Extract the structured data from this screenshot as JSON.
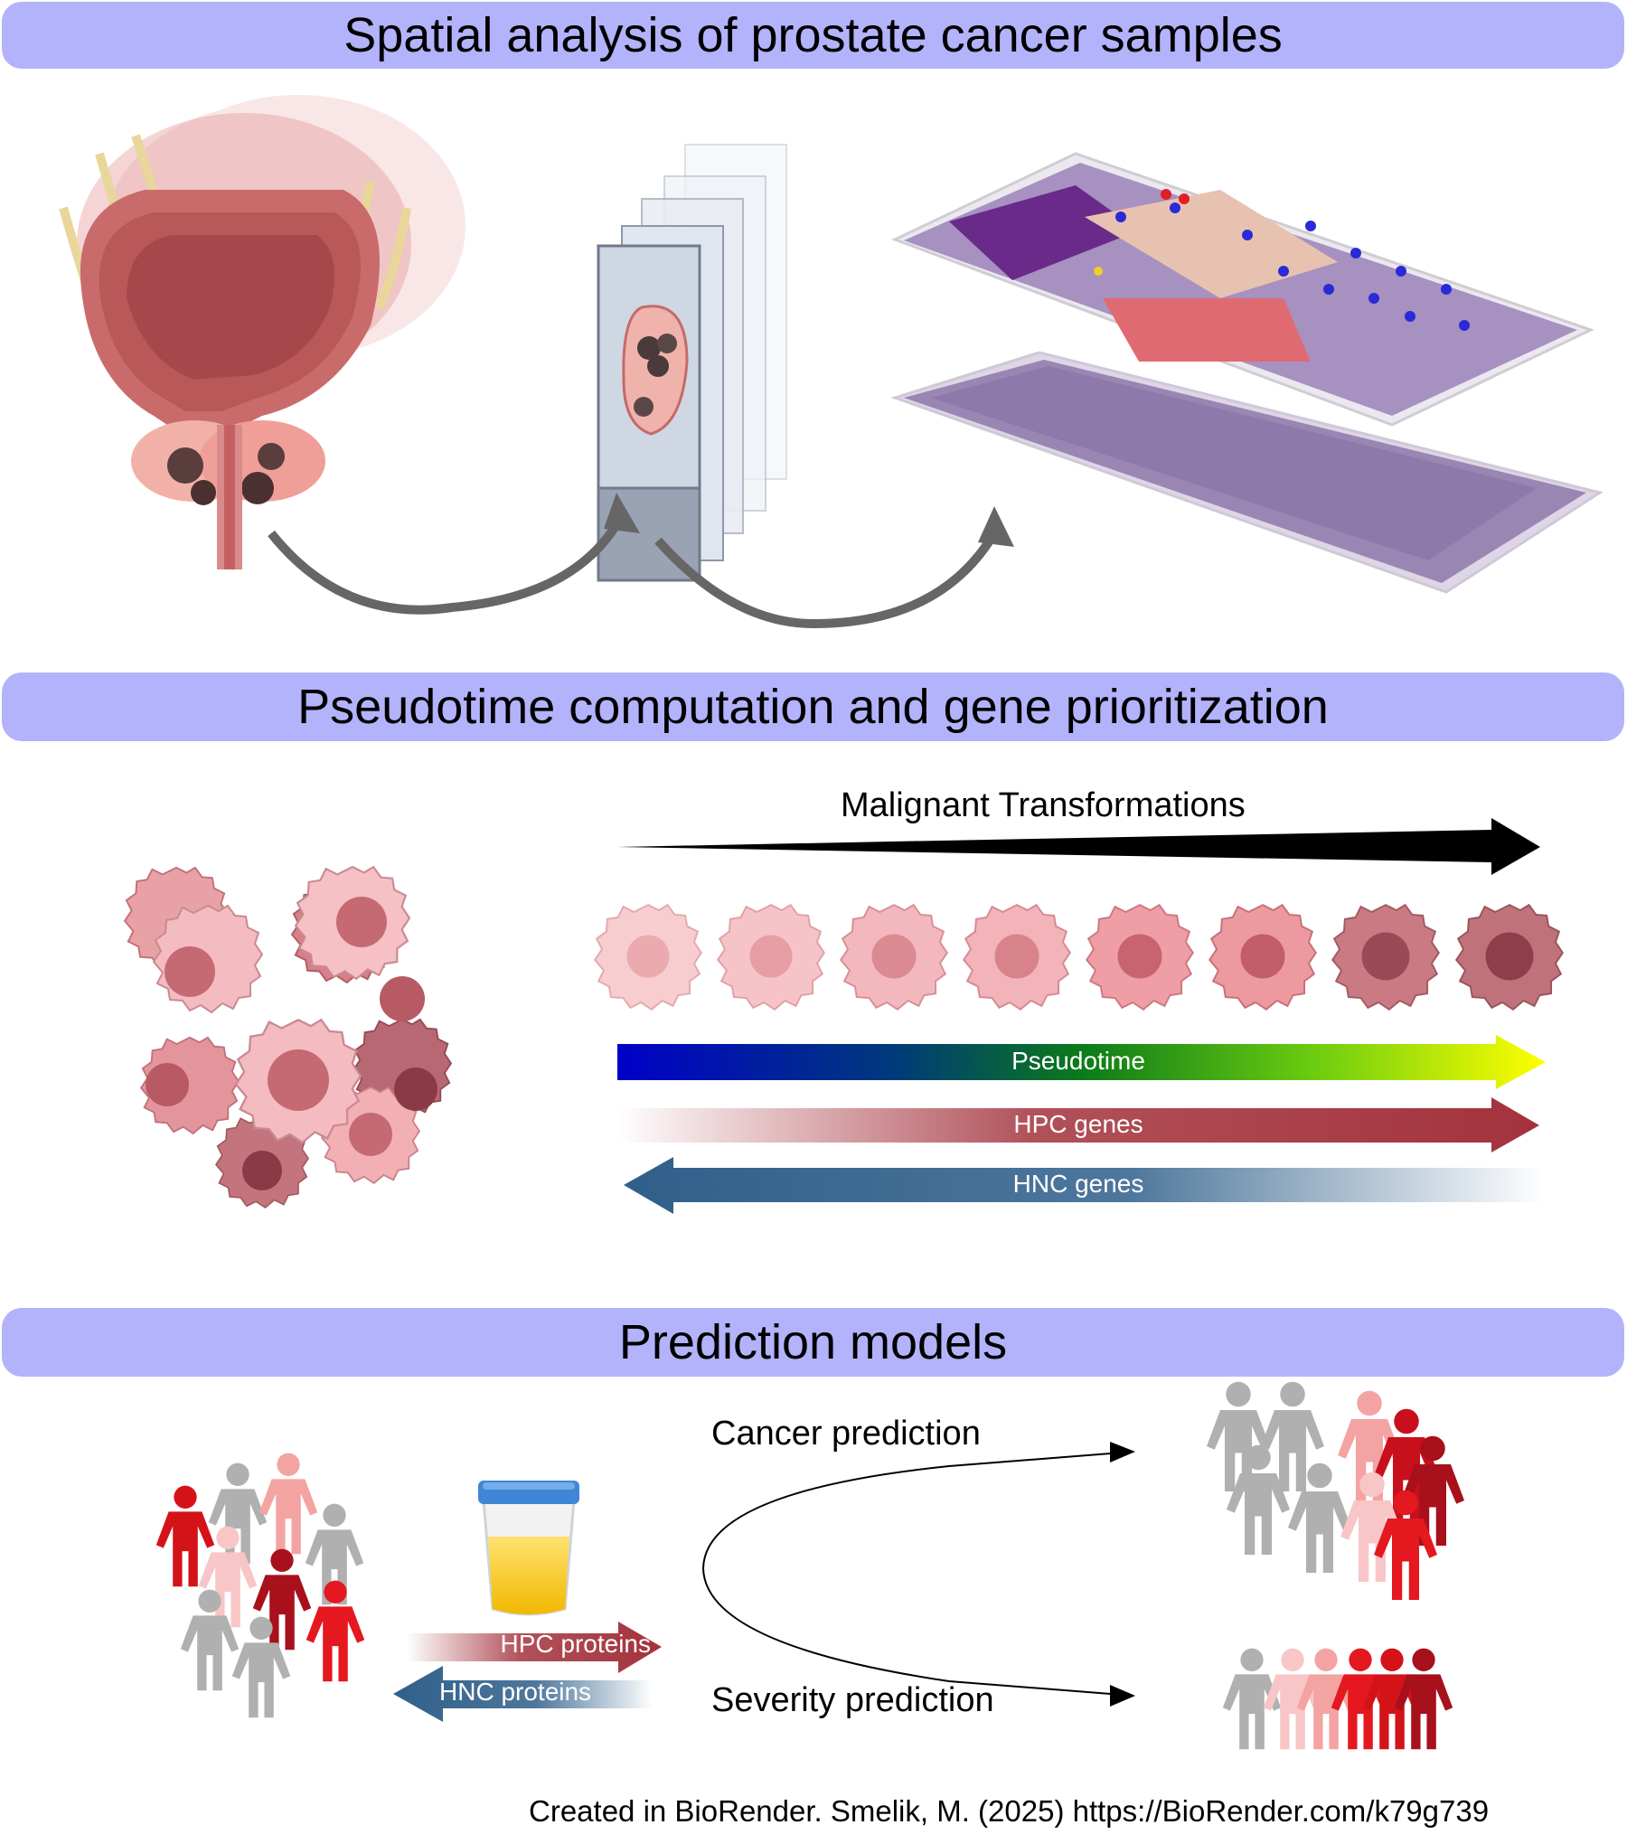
{
  "sections": {
    "spatial": {
      "title": "Spatial analysis of prostate cancer samples"
    },
    "pseudotime": {
      "title": "Pseudotime computation and gene prioritization"
    },
    "prediction": {
      "title": "Prediction models"
    }
  },
  "labels": {
    "malignant": "Malignant Transformations",
    "pseudotime": "Pseudotime",
    "hpc_genes": "HPC genes",
    "hnc_genes": "HNC genes",
    "hpc_proteins": "HPC proteins",
    "hnc_proteins": "HNC proteins",
    "cancer_prediction": "Cancer prediction",
    "severity_prediction": "Severity prediction"
  },
  "credit": "Created in BioRender. Smelik, M. (2025)  https://BioRender.com/k79g739",
  "colors": {
    "banner": "#b3b3fb",
    "hpc": "#a3323c",
    "hnc": "#2f5f8a",
    "cell_light": "#f4b8b8",
    "cell_dark": "#b8545c",
    "person_gray": "#b0b0b0",
    "person_red": "#e4181e",
    "person_darkred": "#b1101c",
    "person_pink": "#f4a3a3"
  },
  "icons": [
    "prostate-bladder-icon",
    "tissue-slides-icon",
    "histology-layers-icon",
    "cell-cluster-icon",
    "cells-row-icon",
    "urine-cup-icon",
    "people-group-icon"
  ]
}
